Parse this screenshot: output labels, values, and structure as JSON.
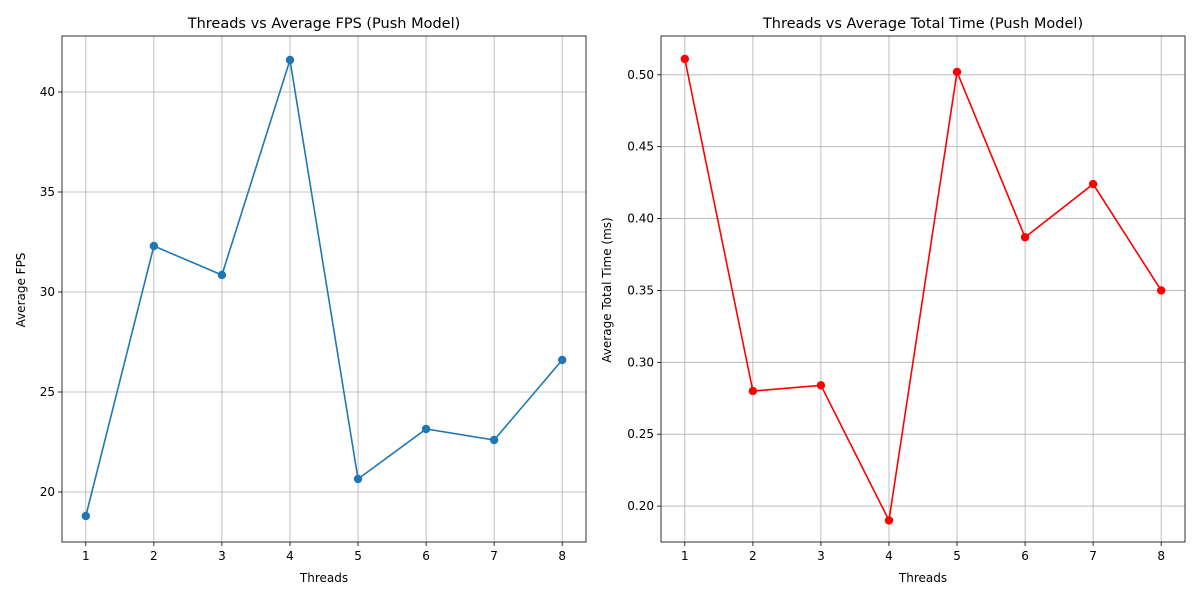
{
  "chart_data": [
    {
      "type": "line",
      "title": "Threads vs Average FPS (Push Model)",
      "xlabel": "Threads",
      "ylabel": "Average FPS",
      "x": [
        1,
        2,
        3,
        4,
        5,
        6,
        7,
        8
      ],
      "series": [
        {
          "values": [
            18.8,
            32.3,
            30.85,
            41.6,
            20.65,
            23.15,
            22.6,
            26.6
          ],
          "color": "#1f77b4"
        }
      ],
      "xlim": [
        0.65,
        8.35
      ],
      "ylim": [
        17.5,
        42.8
      ],
      "xticks": [
        1,
        2,
        3,
        4,
        5,
        6,
        7,
        8
      ],
      "yticks": [
        20,
        25,
        30,
        35,
        40
      ],
      "ytick_labels": [
        "20",
        "25",
        "30",
        "35",
        "40"
      ],
      "grid": true,
      "marker": "circle"
    },
    {
      "type": "line",
      "title": "Threads vs Average Total Time (Push Model)",
      "xlabel": "Threads",
      "ylabel": "Average Total Time (ms)",
      "x": [
        1,
        2,
        3,
        4,
        5,
        6,
        7,
        8
      ],
      "series": [
        {
          "values": [
            0.511,
            0.28,
            0.284,
            0.19,
            0.502,
            0.387,
            0.424,
            0.35
          ],
          "color": "#ff0000"
        }
      ],
      "xlim": [
        0.65,
        8.35
      ],
      "ylim": [
        0.175,
        0.527
      ],
      "xticks": [
        1,
        2,
        3,
        4,
        5,
        6,
        7,
        8
      ],
      "yticks": [
        0.2,
        0.25,
        0.3,
        0.35,
        0.4,
        0.45,
        0.5
      ],
      "ytick_labels": [
        "0.20",
        "0.25",
        "0.30",
        "0.35",
        "0.40",
        "0.45",
        "0.50"
      ],
      "grid": true,
      "marker": "circle"
    }
  ]
}
